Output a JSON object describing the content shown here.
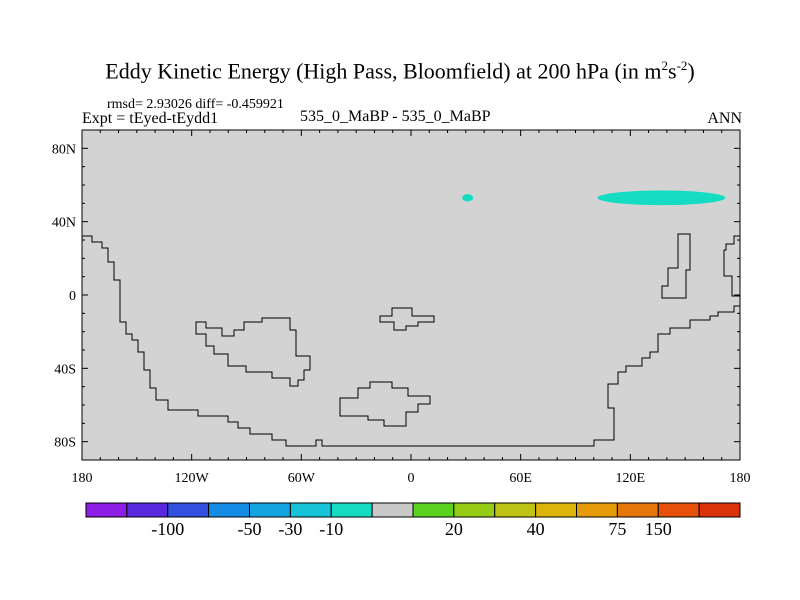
{
  "title": {
    "text": "Eddy Kinetic Energy (High Pass, Bloomfield) at 200 hPa (in m",
    "sup1": "2",
    "mid": "s",
    "sup2": "-2",
    "end": ")"
  },
  "stats": "rmsd= 2.93026 diff= -0.459921",
  "expt": "Expt = tEyed-tEydd1",
  "case_line": "535_0_MaBP - 535_0_MaBP",
  "season": "ANN",
  "chart_data": {
    "type": "heatmap",
    "projection": "cylindrical-equidistant",
    "title": "Eddy Kinetic Energy (High Pass, Bloomfield) at 200 hPa (in m^2 s^-2)",
    "background_value_class": "-10 to 20",
    "x_range": [
      -180,
      180
    ],
    "y_range": [
      -90,
      90
    ],
    "x_ticks": [
      "180",
      "120W",
      "60W",
      "0",
      "60E",
      "120E",
      "180"
    ],
    "y_ticks": [
      "80N",
      "40N",
      "0",
      "40S",
      "80S"
    ],
    "anomalies": [
      {
        "lon": [
          28,
          34
        ],
        "lat": [
          51,
          55
        ],
        "class": "-30 to -10"
      },
      {
        "lon": [
          102,
          172
        ],
        "lat": [
          49,
          57
        ],
        "class": "-30 to -10"
      }
    ],
    "colorbar": {
      "labels": [
        "-100",
        "-50",
        "-30",
        "-10",
        "20",
        "40",
        "75",
        "150"
      ],
      "colors": [
        "#8c1ee6",
        "#5a28dc",
        "#3250e0",
        "#148ce6",
        "#14a5e1",
        "#14c3d7",
        "#14dcc3",
        "#c8c8c8",
        "#5ad21e",
        "#96cd14",
        "#bec314",
        "#dcb40a",
        "#e69b0a",
        "#e6780a",
        "#e6500a",
        "#dc320a"
      ]
    },
    "colors": {
      "land_fill": "#d3d3d3",
      "outline": "#000000",
      "anomaly": "#14dcc3"
    }
  }
}
